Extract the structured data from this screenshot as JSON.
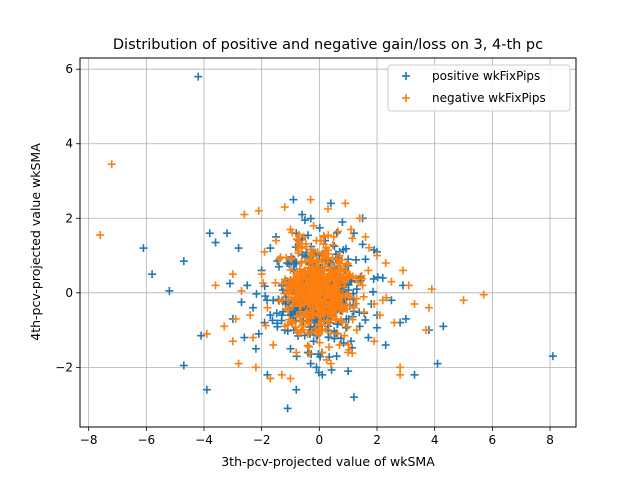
{
  "chart_data": {
    "type": "scatter",
    "title": "Distribution of positive and negative gain/loss on 3, 4-th pc",
    "xlabel": "3th-pcv-projected value of wkSMA",
    "ylabel": "4th-pcv-projected value wkSMA",
    "xlim": [
      -8.3,
      8.9
    ],
    "ylim": [
      -3.6,
      6.3
    ],
    "xticks": [
      -8,
      -6,
      -4,
      -2,
      0,
      2,
      4,
      6,
      8
    ],
    "xtick_labels": [
      "−8",
      "−6",
      "−4",
      "−2",
      "0",
      "2",
      "4",
      "6",
      "8"
    ],
    "yticks": [
      -2,
      0,
      2,
      4,
      6
    ],
    "ytick_labels": [
      "−2",
      "0",
      "2",
      "4",
      "6"
    ],
    "grid": true,
    "legend_position": "top-right",
    "marker": "+",
    "series": [
      {
        "name": "positive wkFixPips",
        "color": "#1f77b4",
        "points": [
          [
            -4.2,
            5.8
          ],
          [
            -6.1,
            1.2
          ],
          [
            -5.8,
            0.5
          ],
          [
            -5.2,
            0.05
          ],
          [
            -4.7,
            0.85
          ],
          [
            -3.8,
            1.6
          ],
          [
            -3.2,
            1.6
          ],
          [
            -3.6,
            1.35
          ],
          [
            -2.8,
            1.2
          ],
          [
            -4.7,
            -1.95
          ],
          [
            -3.9,
            -2.6
          ],
          [
            -4.1,
            -1.15
          ],
          [
            -3.1,
            0.25
          ],
          [
            -2.7,
            -0.25
          ],
          [
            -3.0,
            -0.7
          ],
          [
            -2.6,
            -1.2
          ],
          [
            -2.2,
            -1.5
          ],
          [
            -1.8,
            -2.2
          ],
          [
            -1.1,
            -3.1
          ],
          [
            -0.8,
            -2.6
          ],
          [
            -0.9,
            2.5
          ],
          [
            -0.5,
            1.95
          ],
          [
            1.2,
            -2.8
          ],
          [
            1.9,
            1.15
          ],
          [
            2.8,
            -0.8
          ],
          [
            3.3,
            -2.2
          ],
          [
            3.8,
            -1.0
          ],
          [
            4.1,
            -1.9
          ],
          [
            4.3,
            -0.9
          ],
          [
            8.1,
            -1.7
          ],
          [
            -0.3,
            -1.9
          ],
          [
            0.6,
            -1.7
          ],
          [
            1.7,
            -1.2
          ],
          [
            -1.7,
            1.2
          ],
          [
            -2.0,
            0.6
          ],
          [
            -1.5,
            1.5
          ],
          [
            1.2,
            1.6
          ],
          [
            0.8,
            1.9
          ],
          [
            2.2,
            0.4
          ],
          [
            2.0,
            -0.6
          ],
          [
            -0.8,
            1.6
          ],
          [
            1.4,
            -0.9
          ],
          [
            -1.2,
            -1.0
          ],
          [
            0.2,
            1.4
          ],
          [
            -0.2,
            -1.3
          ],
          [
            2.5,
            -0.2
          ],
          [
            -2.3,
            -0.4
          ],
          [
            1.0,
            -2.1
          ],
          [
            -0.6,
            2.1
          ],
          [
            0.4,
            2.4
          ],
          [
            1.5,
            1.3
          ],
          [
            -1.9,
            -0.8
          ],
          [
            2.9,
            0.2
          ],
          [
            0.1,
            -2.2
          ],
          [
            -1.4,
            0.7
          ],
          [
            1.6,
            0.9
          ],
          [
            -0.4,
            -1.6
          ],
          [
            2.3,
            -1.4
          ],
          [
            -2.5,
            0.2
          ],
          [
            0.7,
            1.1
          ],
          [
            -1.0,
            -1.5
          ],
          [
            1.1,
            -1.3
          ],
          [
            -0.7,
            1.3
          ],
          [
            1.8,
            -0.3
          ],
          [
            -1.6,
            -0.2
          ],
          [
            0.3,
            -0.9
          ],
          [
            -0.2,
            0.8
          ],
          [
            0.9,
            0.6
          ],
          [
            -1.1,
            0.3
          ],
          [
            1.3,
            0.1
          ],
          [
            -0.5,
            -0.5
          ],
          [
            0.5,
            -0.4
          ],
          [
            -0.9,
            0.9
          ],
          [
            0.0,
            1.0
          ],
          [
            1.0,
            0.9
          ],
          [
            -1.3,
            -0.6
          ],
          [
            0.6,
            0.3
          ],
          [
            -0.3,
            0.2
          ],
          [
            0.2,
            -0.1
          ],
          [
            -0.6,
            -0.1
          ],
          [
            2.0,
            1.1
          ],
          [
            -2.1,
            -1.1
          ],
          [
            1.5,
            2.0
          ],
          [
            -0.1,
            -2.0
          ],
          [
            3.0,
            -0.7
          ]
        ]
      },
      {
        "name": "negative wkFixPips",
        "color": "#ff7f0e",
        "points": [
          [
            -7.2,
            3.45
          ],
          [
            -7.6,
            1.55
          ],
          [
            -3.6,
            0.2
          ],
          [
            -3.0,
            0.5
          ],
          [
            -2.6,
            2.1
          ],
          [
            -2.1,
            2.2
          ],
          [
            -1.2,
            2.3
          ],
          [
            -0.3,
            2.5
          ],
          [
            0.3,
            2.25
          ],
          [
            0.9,
            2.4
          ],
          [
            1.4,
            2.0
          ],
          [
            -3.3,
            -0.9
          ],
          [
            -3.9,
            -1.1
          ],
          [
            -3.0,
            -1.3
          ],
          [
            -2.8,
            -1.9
          ],
          [
            -2.2,
            -2.0
          ],
          [
            -1.7,
            -2.3
          ],
          [
            -1.3,
            -2.2
          ],
          [
            -1.0,
            -2.3
          ],
          [
            0.4,
            -1.9
          ],
          [
            0.7,
            -1.4
          ],
          [
            1.0,
            -1.6
          ],
          [
            2.1,
            -0.6
          ],
          [
            2.6,
            -0.8
          ],
          [
            2.8,
            -2.0
          ],
          [
            2.8,
            -2.2
          ],
          [
            3.3,
            -0.3
          ],
          [
            3.7,
            -1.0
          ],
          [
            3.8,
            -0.4
          ],
          [
            3.9,
            0.1
          ],
          [
            5.0,
            -0.2
          ],
          [
            5.7,
            -0.05
          ],
          [
            3.1,
            0.2
          ],
          [
            2.9,
            0.6
          ],
          [
            2.0,
            1.0
          ],
          [
            -2.7,
            0.05
          ],
          [
            -2.9,
            -0.7
          ],
          [
            -2.4,
            -0.6
          ],
          [
            -1.9,
            1.1
          ],
          [
            -1.5,
            1.4
          ],
          [
            1.1,
            1.7
          ],
          [
            1.6,
            1.5
          ],
          [
            2.3,
            0.8
          ],
          [
            -0.8,
            -1.6
          ],
          [
            -1.6,
            -1.4
          ],
          [
            -0.2,
            1.8
          ],
          [
            0.5,
            1.5
          ],
          [
            -1.0,
            1.7
          ],
          [
            1.9,
            -1.3
          ],
          [
            2.5,
            0.3
          ],
          [
            -2.0,
            0.5
          ],
          [
            -2.3,
            -1.2
          ],
          [
            -1.2,
            -0.9
          ],
          [
            1.3,
            -1.0
          ],
          [
            0.1,
            -1.6
          ],
          [
            -0.6,
            1.2
          ],
          [
            0.8,
            -0.8
          ],
          [
            1.7,
            0.6
          ],
          [
            -1.4,
            0.9
          ],
          [
            -0.4,
            -1.1
          ],
          [
            0.2,
            1.1
          ],
          [
            1.0,
            0.4
          ],
          [
            -0.9,
            -0.3
          ],
          [
            0.6,
            -0.2
          ],
          [
            -0.5,
            0.5
          ],
          [
            -1.1,
            0.1
          ],
          [
            1.2,
            -0.4
          ],
          [
            -0.2,
            -0.6
          ],
          [
            0.4,
            0.7
          ],
          [
            -0.7,
            0.2
          ],
          [
            0.0,
            0.3
          ],
          [
            0.3,
            -0.5
          ],
          [
            -0.3,
            0.9
          ],
          [
            0.9,
            -0.1
          ],
          [
            -1.3,
            -0.2
          ],
          [
            1.5,
            0.2
          ],
          [
            -1.8,
            -0.4
          ],
          [
            2.2,
            -0.2
          ],
          [
            -0.1,
            1.4
          ],
          [
            0.7,
            1.0
          ]
        ]
      }
    ],
    "core_clusters": [
      {
        "series": 0,
        "cx": 0.0,
        "cy": 0.0,
        "sx": 0.85,
        "sy": 0.8,
        "n": 420,
        "seed": 11
      },
      {
        "series": 1,
        "cx": 0.0,
        "cy": 0.05,
        "sx": 0.8,
        "sy": 0.75,
        "n": 480,
        "seed": 29
      }
    ]
  }
}
